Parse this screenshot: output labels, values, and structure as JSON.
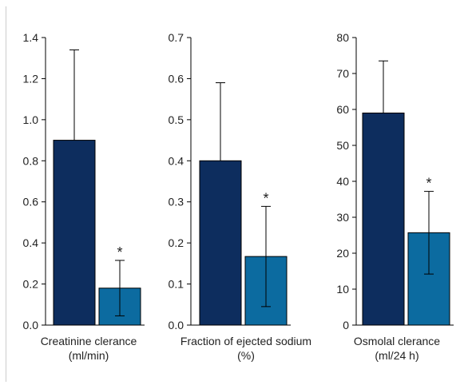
{
  "colors": {
    "control": "#0d2d5e",
    "treated": "#0c6ba0",
    "axis": "#000000",
    "errorbar": "#000000",
    "frame": "#cccccc"
  },
  "chart_data": [
    {
      "type": "bar",
      "categories": [
        "",
        ""
      ],
      "series": [
        {
          "values": [
            0.9,
            0.18
          ],
          "errors": [
            0.44,
            0.135
          ]
        }
      ],
      "significance": [
        "",
        "*"
      ],
      "xlabel": [
        "Creatinine clerance",
        "(ml/min)"
      ],
      "ylabel": "",
      "ylim": [
        0,
        1.4
      ],
      "yticks": [
        0.0,
        0.2,
        0.4,
        0.6,
        0.8,
        1.0,
        1.2,
        1.4
      ],
      "ytick_labels": [
        "0.0",
        "0.2",
        "0.4",
        "0.6",
        "0.8",
        "1.0",
        "1.2",
        "1.4"
      ],
      "grid": false
    },
    {
      "type": "bar",
      "categories": [
        "",
        ""
      ],
      "series": [
        {
          "values": [
            0.4,
            0.167
          ],
          "errors": [
            0.19,
            0.122
          ]
        }
      ],
      "significance": [
        "",
        "*"
      ],
      "xlabel": [
        "Fraction of ejected sodium",
        "(%)"
      ],
      "ylabel": "",
      "ylim": [
        0,
        0.7
      ],
      "yticks": [
        0.0,
        0.1,
        0.2,
        0.3,
        0.4,
        0.5,
        0.6,
        0.7
      ],
      "ytick_labels": [
        "0.0",
        "0.1",
        "0.2",
        "0.3",
        "0.4",
        "0.5",
        "0.6",
        "0.7"
      ],
      "grid": false
    },
    {
      "type": "bar",
      "categories": [
        "",
        ""
      ],
      "series": [
        {
          "values": [
            59,
            25.7
          ],
          "errors": [
            14.5,
            11.5
          ]
        }
      ],
      "significance": [
        "",
        "*"
      ],
      "xlabel": [
        "Osmolal clerance",
        "(ml/24 h)"
      ],
      "ylabel": "",
      "ylim": [
        0,
        80
      ],
      "yticks": [
        0,
        10,
        20,
        30,
        40,
        50,
        60,
        70,
        80
      ],
      "ytick_labels": [
        "0",
        "10",
        "20",
        "30",
        "40",
        "50",
        "60",
        "70",
        "80"
      ],
      "grid": false
    }
  ]
}
